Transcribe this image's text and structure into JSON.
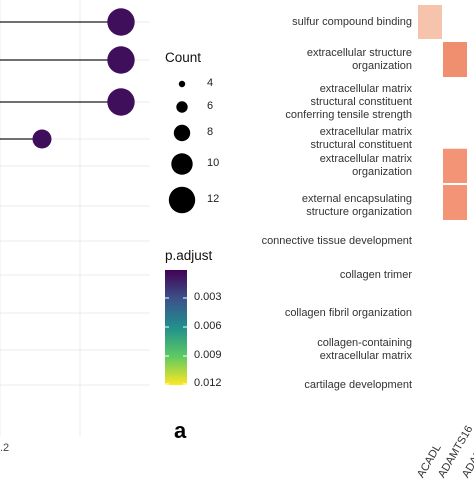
{
  "chart_data": {
    "type": "dot",
    "terms": [
      "sulfur compound binding",
      "extracellular structure organization",
      "extracellular matrix structural constituent conferring tensile strength",
      "extracellular matrix structural constituent",
      "extracellular matrix organization",
      "external encapsulating structure organization",
      "connective tissue development",
      "collagen trimer",
      "collagen fibril organization",
      "collagen-containing extracellular matrix",
      "cartilage development"
    ],
    "term_lines": [
      [
        "sulfur compound binding"
      ],
      [
        "extracellular structure",
        "organization"
      ],
      [
        "extracellular matrix",
        "structural constituent",
        "conferring tensile strength"
      ],
      [
        "extracellular matrix",
        "structural constituent"
      ],
      [
        "extracellular matrix",
        "organization"
      ],
      [
        "external encapsulating",
        "structure organization"
      ],
      [
        "connective tissue development"
      ],
      [
        "collagen trimer"
      ],
      [
        "collagen fibril organization"
      ],
      [
        "collagen-containing",
        "extracellular matrix"
      ],
      [
        "cartilage development"
      ]
    ],
    "points": [
      {
        "term_index": 0,
        "count": 12,
        "p_adjust": 0.0005
      },
      {
        "term_index": 1,
        "count": 12,
        "p_adjust": 0.0005
      },
      {
        "term_index": 2,
        "count": 12,
        "p_adjust": 0.0005
      },
      {
        "term_index": 3,
        "count": 10,
        "p_adjust": 0.0005
      }
    ],
    "x_tick_labels": [
      ".2"
    ],
    "size_legend": {
      "title": "Count",
      "values": [
        4,
        6,
        8,
        10,
        12
      ]
    },
    "color_legend": {
      "title": "p.adjust",
      "ticks": [
        0.003,
        0.006,
        0.009,
        0.012
      ],
      "tick_labels": [
        "0.003",
        "0.006",
        "0.009",
        "0.012"
      ],
      "colors": [
        "#440154",
        "#3b528b",
        "#21908c",
        "#5dc963",
        "#fde725"
      ]
    },
    "panel_letter": "a",
    "heatmap_genes": [
      "ACADL",
      "ADAMTS16",
      "ADAMT"
    ],
    "heatmap_cells": [
      {
        "row": 0,
        "col": 0,
        "color": "#f6c3ad"
      },
      {
        "row": 1,
        "col": 1,
        "color": "#f08e70"
      },
      {
        "row": 4,
        "col": 1,
        "color": "#f29475"
      },
      {
        "row": 5,
        "col": 1,
        "color": "#f29475"
      }
    ]
  }
}
